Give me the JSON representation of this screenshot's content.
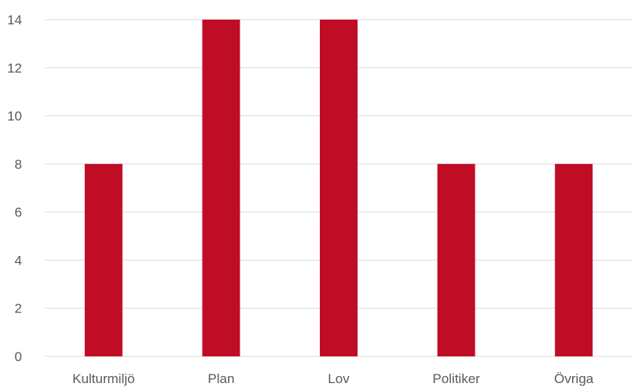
{
  "chart_data": {
    "type": "bar",
    "categories": [
      "Kulturmiljö",
      "Plan",
      "Lov",
      "Politiker",
      "Övriga"
    ],
    "values": [
      8,
      14,
      14,
      8,
      8
    ],
    "ylim": [
      0,
      14
    ],
    "yticks": [
      "0",
      "2",
      "4",
      "6",
      "8",
      "10",
      "12",
      "14"
    ],
    "grid": true,
    "legend": "none",
    "bar_color": "#c00d26"
  }
}
